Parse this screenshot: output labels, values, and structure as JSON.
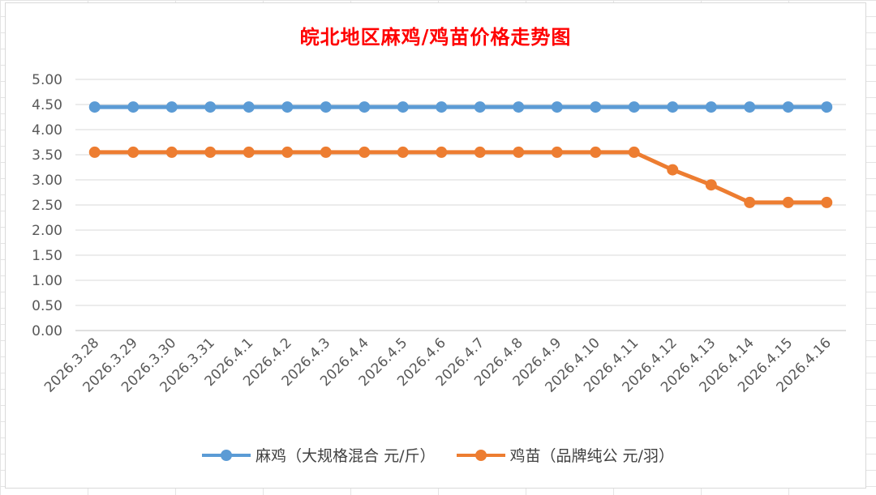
{
  "chart_data": {
    "type": "line",
    "title": "皖北地区麻鸡/鸡苗价格走势图",
    "categories": [
      "2026.3.28",
      "2026.3.29",
      "2026.3.30",
      "2026.3.31",
      "2026.4.1",
      "2026.4.2",
      "2026.4.3",
      "2026.4.4",
      "2026.4.5",
      "2026.4.6",
      "2026.4.7",
      "2026.4.8",
      "2026.4.9",
      "2026.4.10",
      "2026.4.11",
      "2026.4.12",
      "2026.4.13",
      "2026.4.14",
      "2026.4.15",
      "2026.4.16"
    ],
    "yticks": [
      "0.00",
      "0.50",
      "1.00",
      "1.50",
      "2.00",
      "2.50",
      "3.00",
      "3.50",
      "4.00",
      "4.50",
      "5.00"
    ],
    "ylim": [
      0,
      5
    ],
    "grid": true,
    "legend_position": "bottom",
    "series": [
      {
        "name": "麻鸡（大规格混合 元/斤）",
        "color": "#5b9bd5",
        "values": [
          4.45,
          4.45,
          4.45,
          4.45,
          4.45,
          4.45,
          4.45,
          4.45,
          4.45,
          4.45,
          4.45,
          4.45,
          4.45,
          4.45,
          4.45,
          4.45,
          4.45,
          4.45,
          4.45,
          4.45
        ]
      },
      {
        "name": "鸡苗（品牌纯公 元/羽）",
        "color": "#ed7d31",
        "values": [
          3.55,
          3.55,
          3.55,
          3.55,
          3.55,
          3.55,
          3.55,
          3.55,
          3.55,
          3.55,
          3.55,
          3.55,
          3.55,
          3.55,
          3.55,
          3.2,
          2.9,
          2.55,
          2.55,
          2.55
        ]
      }
    ]
  }
}
